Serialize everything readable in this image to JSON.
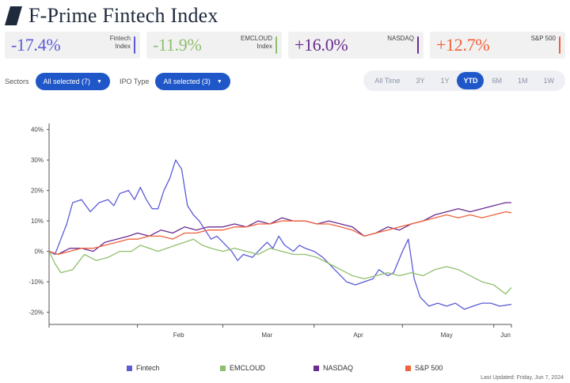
{
  "header": {
    "title": "F-Prime Fintech Index",
    "logo": "slash-logo",
    "logo_color": "#1f2b3d"
  },
  "cards": [
    {
      "value": "-17.4%",
      "label": "Fintech Index",
      "color": "#5b5bd6"
    },
    {
      "value": "-11.9%",
      "label": "EMCLOUD Index",
      "color": "#8fbf6e"
    },
    {
      "value": "+16.0%",
      "label": "NASDAQ",
      "color": "#6a2c91"
    },
    {
      "value": "+12.7%",
      "label": "S&P 500",
      "color": "#f0623a"
    }
  ],
  "filters": {
    "sectors_label": "Sectors",
    "sectors_value": "All selected (7)",
    "ipo_label": "IPO Type",
    "ipo_value": "All selected (3)",
    "accent": "#1f57c9"
  },
  "time_ranges": [
    "All Time",
    "3Y",
    "1Y",
    "YTD",
    "6M",
    "1M",
    "1W"
  ],
  "selected_range": "YTD",
  "last_updated": "Last Updated: Friday, Jun 7, 2024",
  "chart_data": {
    "type": "line",
    "title": "",
    "xlabel": "",
    "ylabel": "",
    "x_ticks": [
      "Feb",
      "Mar",
      "Apr",
      "May",
      "Jun"
    ],
    "y_ticks": [
      "40%",
      "30%",
      "20%",
      "10%",
      "0%",
      "-10%",
      "-20%"
    ],
    "ylim": [
      -24,
      42
    ],
    "xlim": [
      "2024-01-02",
      "2024-06-07"
    ],
    "grid": false,
    "legend_position": "bottom",
    "series": [
      {
        "name": "Fintech",
        "color": "#5b5bd6",
        "points": [
          [
            "2024-01-02",
            0
          ],
          [
            "2024-01-04",
            -1
          ],
          [
            "2024-01-06",
            4
          ],
          [
            "2024-01-08",
            9
          ],
          [
            "2024-01-10",
            16
          ],
          [
            "2024-01-13",
            17
          ],
          [
            "2024-01-16",
            13
          ],
          [
            "2024-01-19",
            16
          ],
          [
            "2024-01-22",
            17
          ],
          [
            "2024-01-24",
            15
          ],
          [
            "2024-01-26",
            19
          ],
          [
            "2024-01-29",
            20
          ],
          [
            "2024-01-31",
            17
          ],
          [
            "2024-02-02",
            21
          ],
          [
            "2024-02-04",
            17
          ],
          [
            "2024-02-06",
            14
          ],
          [
            "2024-02-08",
            14
          ],
          [
            "2024-02-10",
            20
          ],
          [
            "2024-02-12",
            24
          ],
          [
            "2024-02-14",
            30
          ],
          [
            "2024-02-16",
            27
          ],
          [
            "2024-02-18",
            15
          ],
          [
            "2024-02-20",
            12
          ],
          [
            "2024-02-22",
            10
          ],
          [
            "2024-02-24",
            7
          ],
          [
            "2024-02-26",
            4
          ],
          [
            "2024-02-28",
            5
          ],
          [
            "2024-03-01",
            3
          ],
          [
            "2024-03-04",
            0
          ],
          [
            "2024-03-06",
            -3
          ],
          [
            "2024-03-08",
            -1
          ],
          [
            "2024-03-11",
            -2
          ],
          [
            "2024-03-14",
            1
          ],
          [
            "2024-03-16",
            3
          ],
          [
            "2024-03-18",
            1
          ],
          [
            "2024-03-20",
            5
          ],
          [
            "2024-03-22",
            2
          ],
          [
            "2024-03-25",
            0
          ],
          [
            "2024-03-27",
            2
          ],
          [
            "2024-03-29",
            1
          ],
          [
            "2024-04-01",
            0
          ],
          [
            "2024-04-04",
            -2
          ],
          [
            "2024-04-07",
            -5
          ],
          [
            "2024-04-10",
            -8
          ],
          [
            "2024-04-12",
            -10
          ],
          [
            "2024-04-15",
            -11
          ],
          [
            "2024-04-18",
            -10
          ],
          [
            "2024-04-21",
            -9
          ],
          [
            "2024-04-23",
            -6
          ],
          [
            "2024-04-26",
            -8
          ],
          [
            "2024-04-28",
            -7
          ],
          [
            "2024-05-01",
            0
          ],
          [
            "2024-05-03",
            4
          ],
          [
            "2024-05-05",
            -9
          ],
          [
            "2024-05-07",
            -15
          ],
          [
            "2024-05-10",
            -18
          ],
          [
            "2024-05-13",
            -17
          ],
          [
            "2024-05-16",
            -18
          ],
          [
            "2024-05-19",
            -17
          ],
          [
            "2024-05-22",
            -19
          ],
          [
            "2024-05-25",
            -18
          ],
          [
            "2024-05-28",
            -17
          ],
          [
            "2024-05-31",
            -17
          ],
          [
            "2024-06-03",
            -18
          ],
          [
            "2024-06-07",
            -17.4
          ]
        ]
      },
      {
        "name": "EMCLOUD",
        "color": "#8fbf6e",
        "points": [
          [
            "2024-01-02",
            0
          ],
          [
            "2024-01-04",
            -4
          ],
          [
            "2024-01-06",
            -7
          ],
          [
            "2024-01-10",
            -6
          ],
          [
            "2024-01-14",
            -1
          ],
          [
            "2024-01-18",
            -3
          ],
          [
            "2024-01-22",
            -2
          ],
          [
            "2024-01-26",
            0
          ],
          [
            "2024-01-30",
            0
          ],
          [
            "2024-02-02",
            2
          ],
          [
            "2024-02-05",
            1
          ],
          [
            "2024-02-08",
            0
          ],
          [
            "2024-02-11",
            1
          ],
          [
            "2024-02-14",
            2
          ],
          [
            "2024-02-17",
            3
          ],
          [
            "2024-02-20",
            4
          ],
          [
            "2024-02-23",
            2
          ],
          [
            "2024-02-26",
            1
          ],
          [
            "2024-03-01",
            0
          ],
          [
            "2024-03-05",
            1
          ],
          [
            "2024-03-09",
            0
          ],
          [
            "2024-03-13",
            -1
          ],
          [
            "2024-03-17",
            1
          ],
          [
            "2024-03-21",
            0
          ],
          [
            "2024-03-25",
            -1
          ],
          [
            "2024-03-29",
            -1
          ],
          [
            "2024-04-02",
            -2
          ],
          [
            "2024-04-06",
            -4
          ],
          [
            "2024-04-10",
            -6
          ],
          [
            "2024-04-14",
            -8
          ],
          [
            "2024-04-18",
            -9
          ],
          [
            "2024-04-22",
            -8
          ],
          [
            "2024-04-26",
            -7
          ],
          [
            "2024-04-30",
            -8
          ],
          [
            "2024-05-04",
            -7
          ],
          [
            "2024-05-08",
            -8
          ],
          [
            "2024-05-12",
            -6
          ],
          [
            "2024-05-16",
            -5
          ],
          [
            "2024-05-20",
            -6
          ],
          [
            "2024-05-24",
            -8
          ],
          [
            "2024-05-28",
            -10
          ],
          [
            "2024-06-01",
            -11
          ],
          [
            "2024-06-05",
            -14
          ],
          [
            "2024-06-07",
            -11.9
          ]
        ]
      },
      {
        "name": "NASDAQ",
        "color": "#6a2c91",
        "points": [
          [
            "2024-01-02",
            0
          ],
          [
            "2024-01-05",
            -1
          ],
          [
            "2024-01-09",
            1
          ],
          [
            "2024-01-13",
            1
          ],
          [
            "2024-01-17",
            0
          ],
          [
            "2024-01-21",
            3
          ],
          [
            "2024-01-25",
            4
          ],
          [
            "2024-01-29",
            5
          ],
          [
            "2024-02-01",
            6
          ],
          [
            "2024-02-05",
            5
          ],
          [
            "2024-02-09",
            7
          ],
          [
            "2024-02-13",
            6
          ],
          [
            "2024-02-17",
            8
          ],
          [
            "2024-02-21",
            7
          ],
          [
            "2024-02-25",
            8
          ],
          [
            "2024-03-01",
            8
          ],
          [
            "2024-03-05",
            9
          ],
          [
            "2024-03-09",
            8
          ],
          [
            "2024-03-13",
            10
          ],
          [
            "2024-03-17",
            9
          ],
          [
            "2024-03-21",
            11
          ],
          [
            "2024-03-25",
            10
          ],
          [
            "2024-03-29",
            10
          ],
          [
            "2024-04-02",
            9
          ],
          [
            "2024-04-06",
            10
          ],
          [
            "2024-04-10",
            9
          ],
          [
            "2024-04-14",
            8
          ],
          [
            "2024-04-18",
            5
          ],
          [
            "2024-04-22",
            6
          ],
          [
            "2024-04-26",
            8
          ],
          [
            "2024-04-30",
            7
          ],
          [
            "2024-05-04",
            9
          ],
          [
            "2024-05-08",
            10
          ],
          [
            "2024-05-12",
            12
          ],
          [
            "2024-05-16",
            13
          ],
          [
            "2024-05-20",
            14
          ],
          [
            "2024-05-24",
            13
          ],
          [
            "2024-05-28",
            14
          ],
          [
            "2024-06-01",
            15
          ],
          [
            "2024-06-05",
            16
          ],
          [
            "2024-06-07",
            16.0
          ]
        ]
      },
      {
        "name": "S&P 500",
        "color": "#f0623a",
        "points": [
          [
            "2024-01-02",
            0
          ],
          [
            "2024-01-05",
            -1
          ],
          [
            "2024-01-09",
            0
          ],
          [
            "2024-01-13",
            1
          ],
          [
            "2024-01-17",
            1
          ],
          [
            "2024-01-21",
            2
          ],
          [
            "2024-01-25",
            3
          ],
          [
            "2024-01-29",
            4
          ],
          [
            "2024-02-01",
            4
          ],
          [
            "2024-02-05",
            5
          ],
          [
            "2024-02-09",
            5
          ],
          [
            "2024-02-13",
            4
          ],
          [
            "2024-02-17",
            6
          ],
          [
            "2024-02-21",
            6
          ],
          [
            "2024-02-25",
            7
          ],
          [
            "2024-03-01",
            7
          ],
          [
            "2024-03-05",
            8
          ],
          [
            "2024-03-09",
            8
          ],
          [
            "2024-03-13",
            9
          ],
          [
            "2024-03-17",
            9
          ],
          [
            "2024-03-21",
            10
          ],
          [
            "2024-03-25",
            10
          ],
          [
            "2024-03-29",
            10
          ],
          [
            "2024-04-02",
            9
          ],
          [
            "2024-04-06",
            9
          ],
          [
            "2024-04-10",
            8
          ],
          [
            "2024-04-14",
            7
          ],
          [
            "2024-04-18",
            5
          ],
          [
            "2024-04-22",
            6
          ],
          [
            "2024-04-26",
            7
          ],
          [
            "2024-04-30",
            8
          ],
          [
            "2024-05-04",
            9
          ],
          [
            "2024-05-08",
            10
          ],
          [
            "2024-05-12",
            11
          ],
          [
            "2024-05-16",
            12
          ],
          [
            "2024-05-20",
            11
          ],
          [
            "2024-05-24",
            12
          ],
          [
            "2024-05-28",
            11
          ],
          [
            "2024-06-01",
            12
          ],
          [
            "2024-06-05",
            13
          ],
          [
            "2024-06-07",
            12.7
          ]
        ]
      }
    ]
  }
}
